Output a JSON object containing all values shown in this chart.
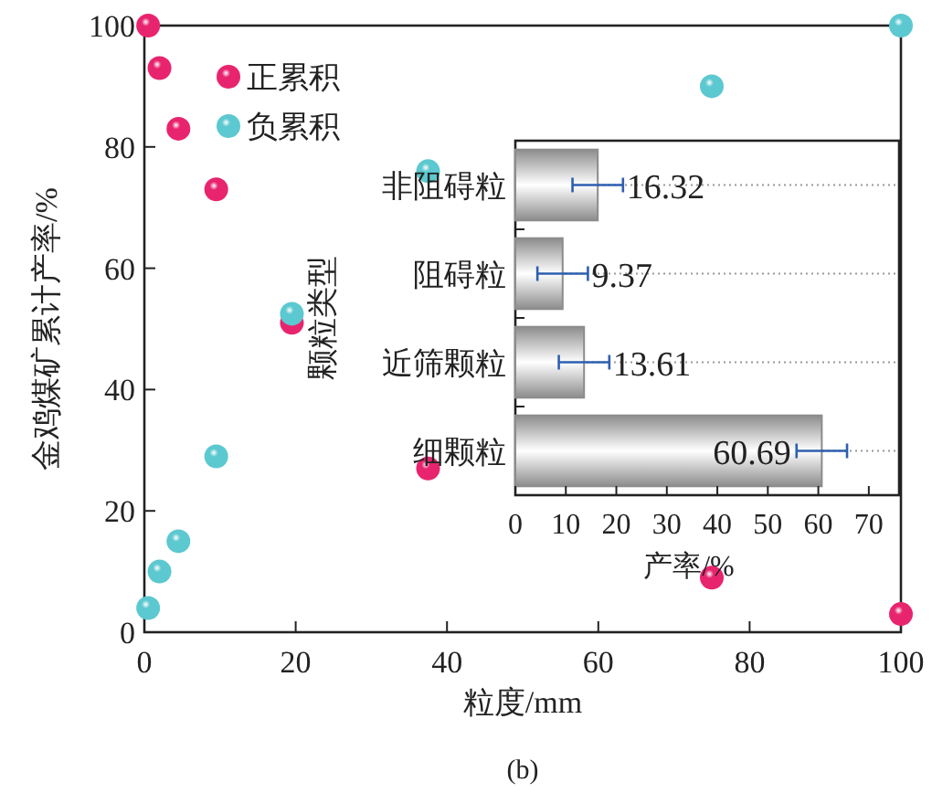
{
  "chart_data": [
    {
      "type": "scatter",
      "xlabel": "粒度/mm",
      "ylabel": "金鸡煤矿累计产率/%",
      "xlim": [
        0,
        100
      ],
      "ylim": [
        0,
        100
      ],
      "xticks": [
        0,
        20,
        40,
        60,
        80,
        100
      ],
      "yticks": [
        0,
        20,
        40,
        60,
        80,
        100
      ],
      "marker": "circle",
      "legend": "top left",
      "grid": false,
      "annotations": [
        "(b)"
      ],
      "series": [
        {
          "name": "正累积",
          "color": "#e8246e",
          "x": [
            0.5,
            2,
            4.5,
            9.5,
            19.5,
            37.5,
            75,
            100
          ],
          "values": [
            100,
            93,
            83,
            73,
            51,
            27,
            9,
            3
          ]
        },
        {
          "name": "负累积",
          "color": "#5cc8d0",
          "x": [
            0.5,
            2,
            4.5,
            9.5,
            19.5,
            37.5,
            75,
            100
          ],
          "values": [
            4,
            10,
            15,
            29,
            52.5,
            76,
            90,
            100
          ]
        }
      ]
    },
    {
      "type": "bar",
      "orientation": "horizontal",
      "categories": [
        "非阻碍粒",
        "阻碍粒",
        "近筛颗粒",
        "细颗粒"
      ],
      "values": [
        16.32,
        9.37,
        13.61,
        60.69
      ],
      "errors": [
        5,
        5,
        5,
        5
      ],
      "color": "#8c8c8c",
      "xlim": [
        0,
        76
      ],
      "xticks": [
        0,
        10,
        20,
        30,
        40,
        50,
        60,
        70
      ],
      "xlabel": "产率/%",
      "ylabel": "颗粒类型",
      "data_labels": true,
      "grid": "y"
    }
  ]
}
